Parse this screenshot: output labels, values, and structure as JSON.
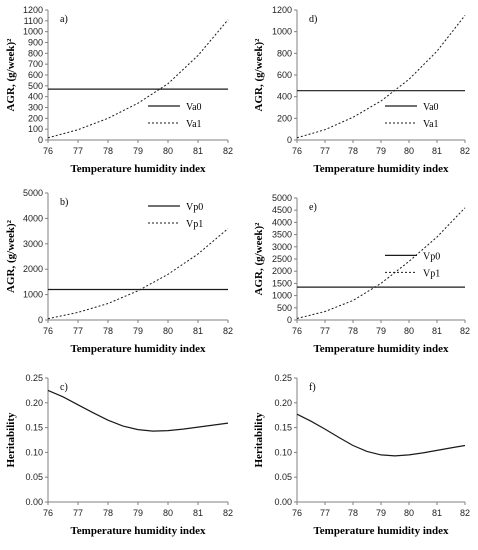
{
  "chart_data": [
    {
      "panel": "a)",
      "type": "line",
      "xlabel": "Temperature humidity index",
      "ylabel": "AGR, (g/week)²",
      "xlim": [
        76,
        82
      ],
      "ylim": [
        0,
        1200
      ],
      "xticks": [
        "76",
        "77",
        "78",
        "79",
        "80",
        "81",
        "82"
      ],
      "yticks": [
        "0",
        "100",
        "200",
        "300",
        "400",
        "500",
        "600",
        "700",
        "800",
        "900",
        "1000",
        "1100",
        "1200"
      ],
      "grid": false,
      "legend_position": "lower-right",
      "x": [
        76,
        77,
        78,
        79,
        80,
        81,
        82
      ],
      "series": [
        {
          "name": "Va0",
          "style": "solid",
          "values": [
            470,
            470,
            470,
            470,
            470,
            470,
            470
          ]
        },
        {
          "name": "Va1",
          "style": "dotted",
          "values": [
            20,
            95,
            200,
            340,
            520,
            780,
            1110
          ]
        }
      ]
    },
    {
      "panel": "d)",
      "type": "line",
      "xlabel": "Temperature humidity index",
      "ylabel": "AGR, (g/week)²",
      "xlim": [
        76,
        82
      ],
      "ylim": [
        0,
        1200
      ],
      "xticks": [
        "76",
        "77",
        "78",
        "79",
        "80",
        "81",
        "82"
      ],
      "yticks": [
        "0",
        "200",
        "400",
        "600",
        "800",
        "1000",
        "1200"
      ],
      "grid": false,
      "legend_position": "lower-right",
      "x": [
        76,
        77,
        78,
        79,
        80,
        81,
        82
      ],
      "series": [
        {
          "name": "Va0",
          "style": "solid",
          "values": [
            455,
            455,
            455,
            455,
            455,
            455,
            455
          ]
        },
        {
          "name": "Va1",
          "style": "dotted",
          "values": [
            20,
            95,
            210,
            360,
            560,
            820,
            1150
          ]
        }
      ]
    },
    {
      "panel": "b)",
      "type": "line",
      "xlabel": "Temperature humidity index",
      "ylabel": "AGR, (g/week)²",
      "xlim": [
        76,
        82
      ],
      "ylim": [
        0,
        5000
      ],
      "xticks": [
        "76",
        "77",
        "78",
        "79",
        "80",
        "81",
        "82"
      ],
      "yticks": [
        "0",
        "1000",
        "2000",
        "3000",
        "4000",
        "5000"
      ],
      "grid": false,
      "legend_position": "top-right",
      "x": [
        76,
        77,
        78,
        79,
        80,
        81,
        82
      ],
      "series": [
        {
          "name": "Vp0",
          "style": "solid",
          "values": [
            1200,
            1200,
            1200,
            1200,
            1200,
            1200,
            1200
          ]
        },
        {
          "name": "Vp1",
          "style": "dotted",
          "values": [
            50,
            300,
            650,
            1150,
            1800,
            2600,
            3600
          ]
        }
      ]
    },
    {
      "panel": "e)",
      "type": "line",
      "xlabel": "Temperature humidity index",
      "ylabel": "AGR, (g/week)²",
      "xlim": [
        76,
        82
      ],
      "ylim": [
        0,
        5000
      ],
      "xticks": [
        "76",
        "77",
        "78",
        "79",
        "80",
        "81",
        "82"
      ],
      "yticks": [
        "0",
        "500",
        "1000",
        "1500",
        "2000",
        "2500",
        "3000",
        "3500",
        "4000",
        "4500",
        "5000"
      ],
      "grid": false,
      "legend_position": "middle-right",
      "x": [
        76,
        77,
        78,
        79,
        80,
        81,
        82
      ],
      "series": [
        {
          "name": "Vp0",
          "style": "solid",
          "values": [
            1350,
            1350,
            1350,
            1350,
            1350,
            1350,
            1350
          ]
        },
        {
          "name": "Vp1",
          "style": "dotted",
          "values": [
            60,
            350,
            800,
            1500,
            2400,
            3400,
            4600
          ]
        }
      ]
    },
    {
      "panel": "c)",
      "type": "line",
      "xlabel": "Temperature humidity index",
      "ylabel": "Heritability",
      "xlim": [
        76,
        82
      ],
      "ylim": [
        0,
        0.25
      ],
      "xticks": [
        "76",
        "77",
        "78",
        "79",
        "80",
        "81",
        "82"
      ],
      "yticks": [
        "0.00",
        "0.05",
        "0.10",
        "0.15",
        "0.20",
        "0.25"
      ],
      "grid": false,
      "x": [
        76,
        76.5,
        77,
        77.5,
        78,
        78.5,
        79,
        79.5,
        80,
        80.5,
        81,
        81.5,
        82
      ],
      "series": [
        {
          "style": "solid",
          "values": [
            0.225,
            0.212,
            0.196,
            0.18,
            0.165,
            0.153,
            0.146,
            0.143,
            0.144,
            0.147,
            0.151,
            0.155,
            0.159
          ]
        }
      ]
    },
    {
      "panel": "f)",
      "type": "line",
      "xlabel": "Temperature humidity index",
      "ylabel": "Heritability",
      "xlim": [
        76,
        82
      ],
      "ylim": [
        0,
        0.25
      ],
      "xticks": [
        "76",
        "77",
        "78",
        "79",
        "80",
        "81",
        "82"
      ],
      "yticks": [
        "0.00",
        "0.05",
        "0.10",
        "0.15",
        "0.20",
        "0.25"
      ],
      "grid": false,
      "x": [
        76,
        76.5,
        77,
        77.5,
        78,
        78.5,
        79,
        79.5,
        80,
        80.5,
        81,
        81.5,
        82
      ],
      "series": [
        {
          "style": "solid",
          "values": [
            0.177,
            0.163,
            0.147,
            0.13,
            0.114,
            0.102,
            0.095,
            0.093,
            0.095,
            0.099,
            0.104,
            0.109,
            0.114
          ]
        }
      ]
    }
  ]
}
